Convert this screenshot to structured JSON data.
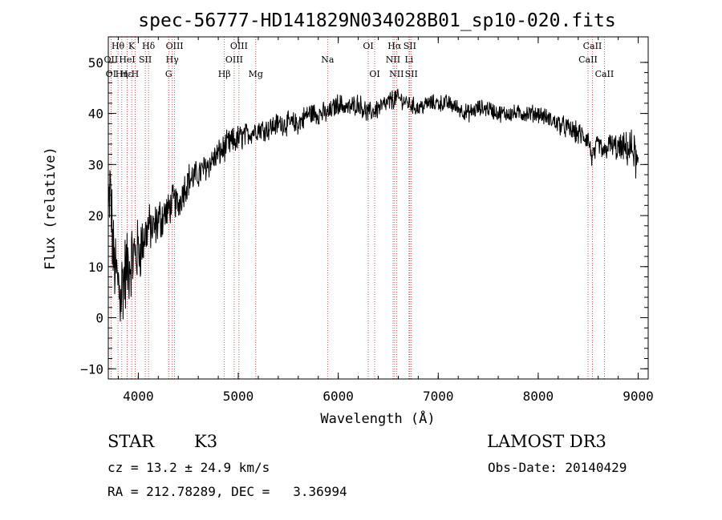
{
  "chart_data": {
    "type": "line",
    "title": "spec-56777-HD141829N034028B01_sp10-020.fits",
    "xlabel": "Wavelength (Å)",
    "ylabel": "Flux (relative)",
    "xlim": [
      3700,
      9100
    ],
    "ylim": [
      -12,
      55
    ],
    "xticks": [
      4000,
      5000,
      6000,
      7000,
      8000,
      9000
    ],
    "yticks": [
      -10,
      0,
      10,
      20,
      30,
      40,
      50
    ],
    "xtick_labels": [
      "4000",
      "5000",
      "6000",
      "7000",
      "8000",
      "9000"
    ],
    "ytick_labels": [
      "−10",
      "0",
      "10",
      "20",
      "30",
      "40",
      "50"
    ],
    "series": [
      {
        "name": "flux",
        "anchors_x": [
          3700,
          3720,
          3750,
          3780,
          3820,
          3860,
          3900,
          3950,
          4000,
          4050,
          4100,
          4150,
          4200,
          4250,
          4300,
          4350,
          4400,
          4450,
          4500,
          4600,
          4700,
          4800,
          4900,
          5000,
          5100,
          5200,
          5300,
          5400,
          5500,
          5600,
          5700,
          5800,
          5900,
          6000,
          6100,
          6200,
          6300,
          6400,
          6500,
          6563,
          6600,
          6700,
          6800,
          6900,
          7000,
          7100,
          7200,
          7300,
          7400,
          7500,
          7600,
          7700,
          7800,
          7900,
          8000,
          8100,
          8200,
          8300,
          8400,
          8500,
          8542,
          8600,
          8662,
          8700,
          8800,
          8900,
          8950,
          9000
        ],
        "anchors_y": [
          20,
          25,
          12,
          8,
          5,
          8,
          10,
          12,
          13,
          15,
          18,
          17,
          19,
          20,
          21,
          23,
          22,
          25,
          27,
          28,
          30,
          32,
          34,
          35,
          36,
          37,
          37,
          38,
          38,
          38,
          40,
          40,
          40,
          42,
          41,
          42,
          40,
          41,
          42,
          43,
          43,
          42,
          41,
          42,
          42,
          42,
          41,
          40,
          41,
          41,
          40,
          40,
          40,
          40,
          40,
          39,
          38,
          37,
          36,
          35,
          31,
          34,
          32,
          34,
          33,
          33,
          33,
          29
        ],
        "noise_amplitude": [
          8,
          8,
          7,
          7,
          8,
          8,
          7,
          6,
          6,
          5,
          4,
          4,
          4,
          4,
          3,
          3,
          3,
          3,
          3,
          2.5,
          2.5,
          2.5,
          2.5,
          2.5,
          2,
          2,
          2,
          2,
          2,
          2,
          2,
          2,
          1.8,
          1.8,
          1.8,
          1.8,
          1.8,
          1.8,
          1.8,
          1.8,
          1.5,
          1.5,
          1.5,
          1.5,
          1.5,
          1.5,
          1.5,
          1.5,
          1.5,
          1.5,
          1.5,
          1.5,
          1.5,
          1.5,
          1.5,
          1.5,
          1.8,
          1.8,
          2,
          2,
          2,
          2,
          2,
          2,
          2.5,
          3,
          3.5,
          4
        ]
      }
    ],
    "line_labels": [
      {
        "text": "Hθ",
        "wavelength": 3797,
        "row": 0
      },
      {
        "text": "K",
        "wavelength": 3934,
        "row": 0
      },
      {
        "text": "Hδ",
        "wavelength": 4102,
        "row": 0
      },
      {
        "text": "OIII",
        "wavelength": 4363,
        "row": 0
      },
      {
        "text": "OIII",
        "wavelength": 5007,
        "row": 0
      },
      {
        "text": "OI",
        "wavelength": 6300,
        "row": 0
      },
      {
        "text": "Hα",
        "wavelength": 6563,
        "row": 0
      },
      {
        "text": "SII",
        "wavelength": 6716,
        "row": 0
      },
      {
        "text": "CaII",
        "wavelength": 8542,
        "row": 0
      },
      {
        "text": "OII",
        "wavelength": 3727,
        "row": 1
      },
      {
        "text": "HeI",
        "wavelength": 3889,
        "row": 1
      },
      {
        "text": "SII",
        "wavelength": 4070,
        "row": 1
      },
      {
        "text": "Hγ",
        "wavelength": 4340,
        "row": 1
      },
      {
        "text": "OIII",
        "wavelength": 4959,
        "row": 1
      },
      {
        "text": "Na",
        "wavelength": 5893,
        "row": 1
      },
      {
        "text": "NII",
        "wavelength": 6548,
        "row": 1
      },
      {
        "text": "Li",
        "wavelength": 6708,
        "row": 1
      },
      {
        "text": "CaII",
        "wavelength": 8498,
        "row": 1
      },
      {
        "text": "OI",
        "wavelength": 3727,
        "row": 2
      },
      {
        "text": "Hε",
        "wavelength": 3880,
        "row": 2
      },
      {
        "text": "Hη",
        "wavelength": 3835,
        "row": 2
      },
      {
        "text": "H",
        "wavelength": 3968,
        "row": 2
      },
      {
        "text": "G",
        "wavelength": 4304,
        "row": 2
      },
      {
        "text": "Hβ",
        "wavelength": 4861,
        "row": 2
      },
      {
        "text": "Mg",
        "wavelength": 5175,
        "row": 2
      },
      {
        "text": "OI",
        "wavelength": 6364,
        "row": 2
      },
      {
        "text": "NII",
        "wavelength": 6583,
        "row": 2
      },
      {
        "text": "SII",
        "wavelength": 6731,
        "row": 2
      },
      {
        "text": "CaII",
        "wavelength": 8662,
        "row": 2
      }
    ],
    "line_markers": [
      3727,
      3797,
      3835,
      3889,
      3934,
      3968,
      4070,
      4102,
      4304,
      4340,
      4363,
      4861,
      4959,
      5007,
      5175,
      5893,
      6300,
      6364,
      6548,
      6563,
      6583,
      6708,
      6716,
      6731,
      8498,
      8542,
      8662
    ]
  },
  "info": {
    "object_class": "STAR",
    "subclass": "K3",
    "survey": "LAMOST DR3",
    "redshift_line": "cz = 13.2 ± 24.9 km/s",
    "obs_date_line": "Obs-Date: 20140429",
    "coords_line": "RA = 212.78289, DEC =   3.36994"
  }
}
